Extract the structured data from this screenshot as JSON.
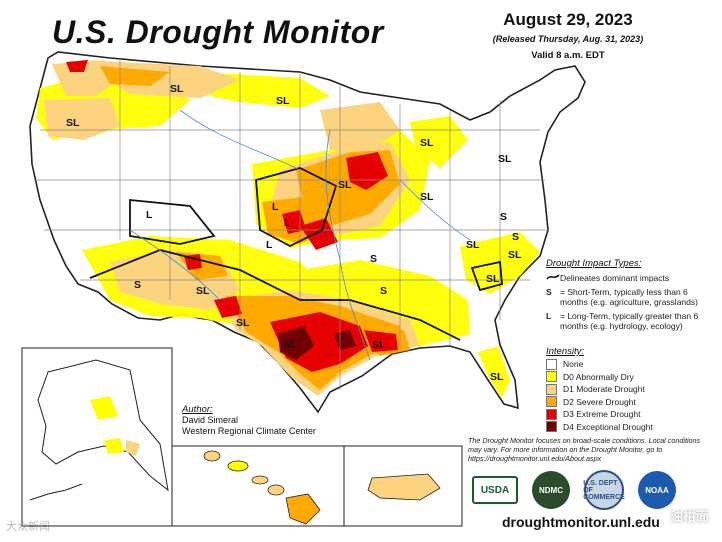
{
  "header": {
    "title": "U.S. Drought Monitor",
    "date": "August 29, 2023",
    "released": "(Released Thursday, Aug. 31, 2023)",
    "valid": "Valid 8 a.m. EDT"
  },
  "map": {
    "labels": [
      "SL",
      "SL",
      "SL",
      "SL",
      "SL",
      "SL",
      "L",
      "L",
      "S",
      "S",
      "SL",
      "SL",
      "SL",
      "SL",
      "S",
      "L",
      "S",
      "L",
      "SL",
      "SL",
      "SL",
      "SL",
      "S",
      "S",
      "S",
      "SL"
    ],
    "colors": {
      "none": "#ffffff",
      "d0": "#ffff00",
      "d1": "#fcd37f",
      "d2": "#ffaa00",
      "d3": "#e60000",
      "d4": "#730000"
    }
  },
  "legend": {
    "impacts_title": "Drought Impact Types:",
    "impacts": [
      {
        "key": "",
        "text": "Delineates dominant impacts"
      },
      {
        "key": "S",
        "text": "= Short-Term, typically less than 6 months (e.g. agriculture, grasslands)"
      },
      {
        "key": "L",
        "text": "= Long-Term, typically greater than 6 months (e.g. hydrology, ecology)"
      }
    ],
    "intensity_title": "Intensity:",
    "intensity": [
      {
        "label": "None",
        "color": "#ffffff"
      },
      {
        "label": "D0 Abnormally Dry",
        "color": "#ffff00"
      },
      {
        "label": "D1 Moderate Drought",
        "color": "#fcd37f"
      },
      {
        "label": "D2 Severe Drought",
        "color": "#ffaa00"
      },
      {
        "label": "D3 Extreme Drought",
        "color": "#e60000"
      },
      {
        "label": "D4 Exceptional Drought",
        "color": "#730000"
      }
    ]
  },
  "author": {
    "label": "Author:",
    "name": "David Simeral",
    "org": "Western Regional Climate Center"
  },
  "note": "The Drought Monitor focuses on broad-scale conditions. Local conditions may vary. For more information on the Drought Monitor, go to https://droughtmonitor.unl.edu/About.aspx",
  "logos": [
    "USDA",
    "NDMC",
    "U.S. DEPT OF COMMERCE",
    "NOAA"
  ],
  "url": "droughtmonitor.unl.edu",
  "watermarks": {
    "left": "大众新闻",
    "right": "油柑面"
  }
}
